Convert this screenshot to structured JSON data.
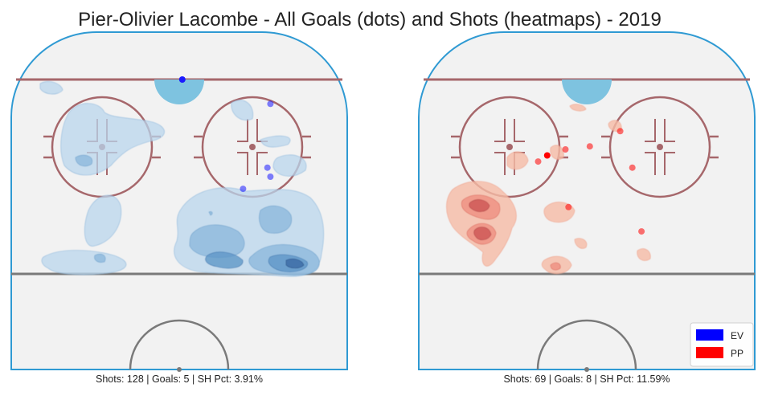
{
  "chart_data": {
    "type": "scatter",
    "title": "Pier-Olivier Lacombe - All Goals (dots) and Shots (heatmaps) - 2019",
    "legend": {
      "placement": "bottom-right",
      "items": [
        {
          "label": "EV",
          "color": "#0000ff"
        },
        {
          "label": "PP",
          "color": "#ff0000"
        }
      ]
    },
    "panels": [
      {
        "strength": "EV",
        "caption": "Shots: 128 | Goals: 5 | SH Pct: 3.91%",
        "heatmap_color": "#4a8fc7",
        "goal_color": "#1a1aff",
        "goals": [
          {
            "x": 1,
            "y": 89
          },
          {
            "x": 30,
            "y": 81
          },
          {
            "x": 29,
            "y": 60
          },
          {
            "x": 21,
            "y": 53
          },
          {
            "x": 30,
            "y": 57
          }
        ]
      },
      {
        "strength": "PP",
        "caption": "Shots: 69 | Goals: 8 | SH Pct: 11.59%",
        "heatmap_color": "#e8604c",
        "goal_color": "#ff0000",
        "goals": [
          {
            "x": -13,
            "y": 64
          },
          {
            "x": -16,
            "y": 62
          },
          {
            "x": -7,
            "y": 66
          },
          {
            "x": 1,
            "y": 67
          },
          {
            "x": 11,
            "y": 72
          },
          {
            "x": 15,
            "y": 60
          },
          {
            "x": -6,
            "y": 47
          },
          {
            "x": 18,
            "y": 39
          }
        ]
      }
    ]
  }
}
